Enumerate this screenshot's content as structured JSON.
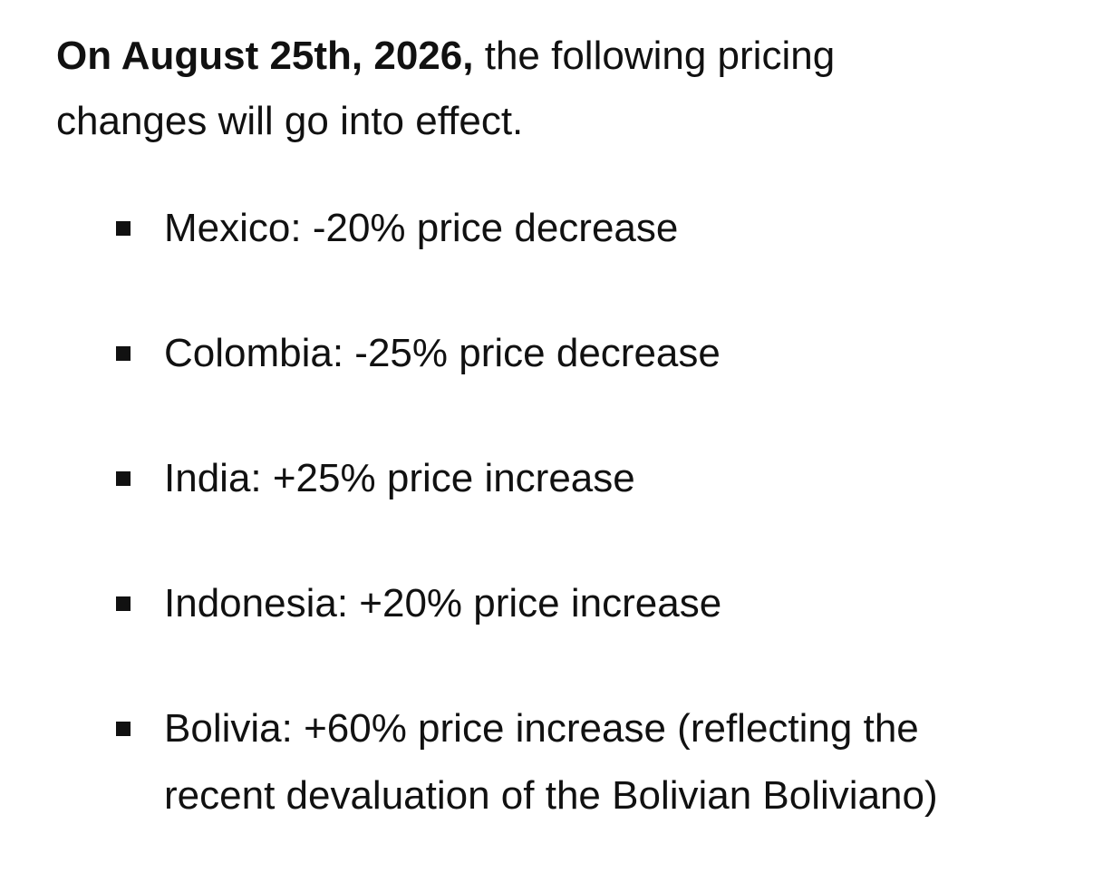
{
  "intro": {
    "bold": "On August 25th, 2026,",
    "text": "the following pricing changes will go into effect."
  },
  "items": [
    "Mexico: -20% price decrease",
    "Colombia: -25% price decrease",
    "India: +25% price increase",
    "Indonesia: +20% price increase",
    "Bolivia: +60% price increase (reflecting the recent devaluation of the Bolivian Boliviano)"
  ]
}
